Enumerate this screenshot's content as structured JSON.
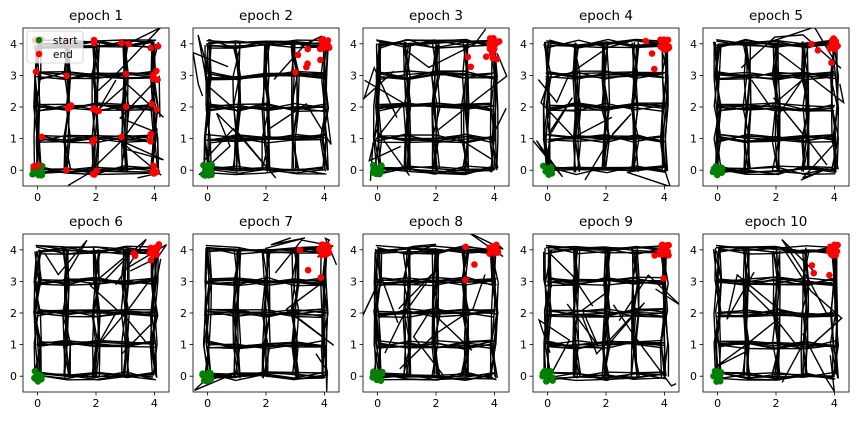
{
  "colors": {
    "path": "#000000",
    "start": "#008000",
    "end": "#ff0000",
    "axis": "#000000",
    "background": "#ffffff"
  },
  "legend": {
    "placement": "top-left of first panel",
    "entries": [
      {
        "label": "start",
        "color": "#008000"
      },
      {
        "label": "end",
        "color": "#ff0000"
      }
    ]
  },
  "chart_data": [
    {
      "type": "scatter",
      "title": "epoch 1",
      "xlim": [
        -0.5,
        4.5
      ],
      "ylim": [
        -0.5,
        4.5
      ],
      "xticks": [
        0,
        2,
        4
      ],
      "yticks": [
        0,
        1,
        2,
        3,
        4
      ],
      "grid_lines": [
        0,
        1,
        2,
        3,
        4
      ],
      "start": [
        0,
        0
      ],
      "end_point_density": "spread across grid"
    },
    {
      "type": "scatter",
      "title": "epoch 2",
      "xlim": [
        -0.5,
        4.5
      ],
      "ylim": [
        -0.5,
        4.5
      ],
      "xticks": [
        0,
        2,
        4
      ],
      "yticks": [
        0,
        1,
        2,
        3,
        4
      ],
      "grid_lines": [
        0,
        1,
        2,
        3,
        4
      ],
      "start": [
        0,
        0
      ],
      "end_point_density": "mostly near (4,4)"
    },
    {
      "type": "scatter",
      "title": "epoch 3",
      "xlim": [
        -0.5,
        4.5
      ],
      "ylim": [
        -0.5,
        4.5
      ],
      "xticks": [
        0,
        2,
        4
      ],
      "yticks": [
        0,
        1,
        2,
        3,
        4
      ],
      "grid_lines": [
        0,
        1,
        2,
        3,
        4
      ],
      "start": [
        0,
        0
      ],
      "end_point_density": "near (4,4)"
    },
    {
      "type": "scatter",
      "title": "epoch 4",
      "xlim": [
        -0.5,
        4.5
      ],
      "ylim": [
        -0.5,
        4.5
      ],
      "xticks": [
        0,
        2,
        4
      ],
      "yticks": [
        0,
        1,
        2,
        3,
        4
      ],
      "grid_lines": [
        0,
        1,
        2,
        3,
        4
      ],
      "start": [
        0,
        0
      ],
      "end_point_density": "near (4,4)"
    },
    {
      "type": "scatter",
      "title": "epoch 5",
      "xlim": [
        -0.5,
        4.5
      ],
      "ylim": [
        -0.5,
        4.5
      ],
      "xticks": [
        0,
        2,
        4
      ],
      "yticks": [
        0,
        1,
        2,
        3,
        4
      ],
      "grid_lines": [
        0,
        1,
        2,
        3,
        4
      ],
      "start": [
        0,
        0
      ],
      "end_point_density": "near (4,4)"
    },
    {
      "type": "scatter",
      "title": "epoch 6",
      "xlim": [
        -0.5,
        4.5
      ],
      "ylim": [
        -0.5,
        4.5
      ],
      "xticks": [
        0,
        2,
        4
      ],
      "yticks": [
        0,
        1,
        2,
        3,
        4
      ],
      "grid_lines": [
        0,
        1,
        2,
        3,
        4
      ],
      "start": [
        0,
        0
      ],
      "end_point_density": "near (4,4)"
    },
    {
      "type": "scatter",
      "title": "epoch 7",
      "xlim": [
        -0.5,
        4.5
      ],
      "ylim": [
        -0.5,
        4.5
      ],
      "xticks": [
        0,
        2,
        4
      ],
      "yticks": [
        0,
        1,
        2,
        3,
        4
      ],
      "grid_lines": [
        0,
        1,
        2,
        3,
        4
      ],
      "start": [
        0,
        0
      ],
      "end_point_density": "near (4,4)"
    },
    {
      "type": "scatter",
      "title": "epoch 8",
      "xlim": [
        -0.5,
        4.5
      ],
      "ylim": [
        -0.5,
        4.5
      ],
      "xticks": [
        0,
        2,
        4
      ],
      "yticks": [
        0,
        1,
        2,
        3,
        4
      ],
      "grid_lines": [
        0,
        1,
        2,
        3,
        4
      ],
      "start": [
        0,
        0
      ],
      "end_point_density": "near (4,4)"
    },
    {
      "type": "scatter",
      "title": "epoch 9",
      "xlim": [
        -0.5,
        4.5
      ],
      "ylim": [
        -0.5,
        4.5
      ],
      "xticks": [
        0,
        2,
        4
      ],
      "yticks": [
        0,
        1,
        2,
        3,
        4
      ],
      "grid_lines": [
        0,
        1,
        2,
        3,
        4
      ],
      "start": [
        0,
        0
      ],
      "end_point_density": "near (4,4)"
    },
    {
      "type": "scatter",
      "title": "epoch 10",
      "xlim": [
        -0.5,
        4.5
      ],
      "ylim": [
        -0.5,
        4.5
      ],
      "xticks": [
        0,
        2,
        4
      ],
      "yticks": [
        0,
        1,
        2,
        3,
        4
      ],
      "grid_lines": [
        0,
        1,
        2,
        3,
        4
      ],
      "start": [
        0,
        0
      ],
      "end_point_density": "near (4,4)"
    }
  ]
}
